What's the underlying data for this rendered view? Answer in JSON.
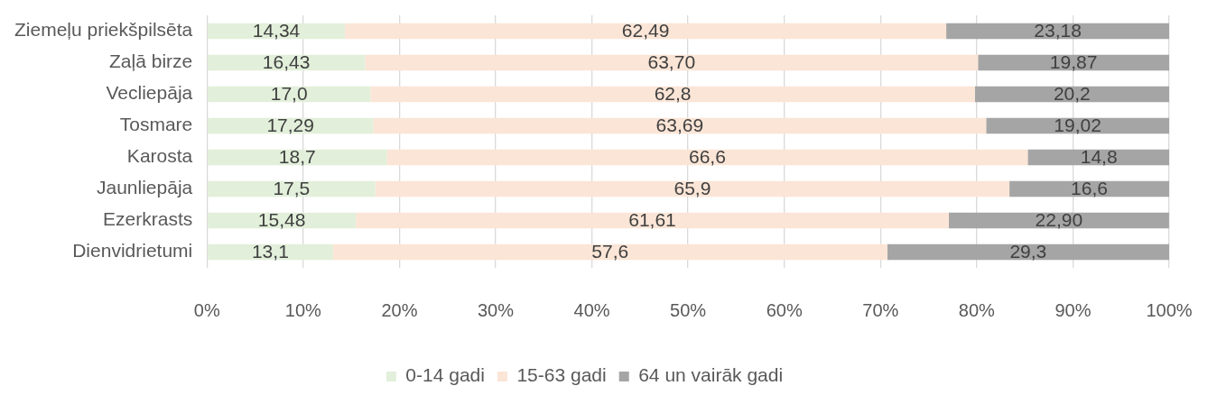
{
  "chart_data": {
    "type": "bar",
    "orientation": "horizontal",
    "stacked": true,
    "categories": [
      "Ziemeļu priekšpilsēta",
      "Zaļā birze",
      "Vecliepāja",
      "Tosmare",
      "Karosta",
      "Jaunliepāja",
      "Ezerkrasts",
      "Dienvidrietumi"
    ],
    "series": [
      {
        "name": "0-14 gadi",
        "color": "#e2efda",
        "values": [
          14.34,
          16.43,
          17.0,
          17.29,
          18.7,
          17.5,
          15.48,
          13.1
        ],
        "value_labels": [
          "14,34",
          "16,43",
          "17,0",
          "17,29",
          "18,7",
          "17,5",
          "15,48",
          "13,1"
        ]
      },
      {
        "name": "15-63 gadi",
        "color": "#fbe5d6",
        "values": [
          62.49,
          63.7,
          62.8,
          63.69,
          66.6,
          65.9,
          61.61,
          57.6
        ],
        "value_labels": [
          "62,49",
          "63,70",
          "62,8",
          "63,69",
          "66,6",
          "65,9",
          "61,61",
          "57,6"
        ]
      },
      {
        "name": "64 un vairāk gadi",
        "color": "#a5a5a5",
        "values": [
          23.18,
          19.87,
          20.2,
          19.02,
          14.8,
          16.6,
          22.9,
          29.3
        ],
        "value_labels": [
          "23,18",
          "19,87",
          "20,2",
          "19,02",
          "14,8",
          "16,6",
          "22,90",
          "29,3"
        ]
      }
    ],
    "xlim": [
      0,
      100
    ],
    "xticks": [
      {
        "value": 0,
        "label": "0%"
      },
      {
        "value": 10,
        "label": "10%"
      },
      {
        "value": 20,
        "label": "20%"
      },
      {
        "value": 30,
        "label": "30%"
      },
      {
        "value": 40,
        "label": "40%"
      },
      {
        "value": 50,
        "label": "50%"
      },
      {
        "value": 60,
        "label": "60%"
      },
      {
        "value": 70,
        "label": "70%"
      },
      {
        "value": 80,
        "label": "80%"
      },
      {
        "value": 90,
        "label": "90%"
      },
      {
        "value": 100,
        "label": "100%"
      }
    ],
    "grid": "x",
    "legend": "bottom"
  }
}
